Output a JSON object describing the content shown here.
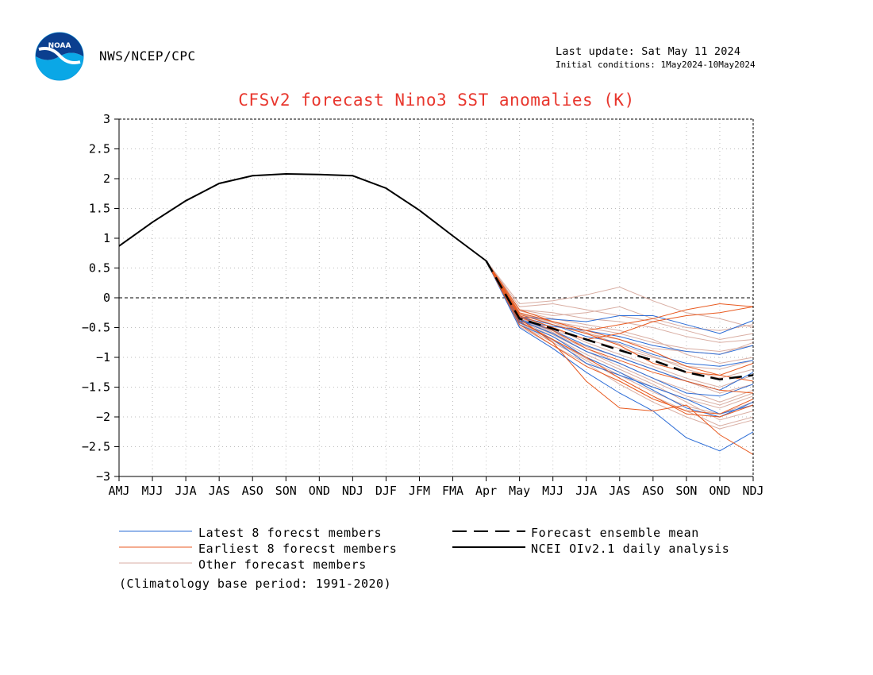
{
  "header": {
    "agency": "NWS/NCEP/CPC",
    "last_update": "Last update: Sat May 11 2024",
    "initial_conditions": "Initial conditions: 1May2024-10May2024",
    "logo_text": "NOAA"
  },
  "colors": {
    "title": "#e8362d",
    "latest": "#2b6cd6",
    "earliest": "#e85a20",
    "other": "#d9aea3",
    "observed": "#000000",
    "mean": "#000000"
  },
  "legend": {
    "latest": "Latest 8 forecst members",
    "earliest": "Earliest 8 forecst members",
    "other": "Other forecast members",
    "mean": "Forecast ensemble mean",
    "observed": "NCEI OIv2.1 daily analysis"
  },
  "footnote": "(Climatology base period: 1991-2020)",
  "chart_data": {
    "type": "line",
    "title": "CFSv2 forecast Nino3 SST anomalies (K)",
    "x": [
      "AMJ",
      "MJJ",
      "JJA",
      "JAS",
      "ASO",
      "SON",
      "OND",
      "NDJ",
      "DJF",
      "JFM",
      "FMA",
      "Apr",
      "May",
      "MJJ",
      "JJA",
      "JAS",
      "ASO",
      "SON",
      "OND",
      "NDJ"
    ],
    "ylim": [
      -3,
      3
    ],
    "yticks": [
      "3",
      "2.5",
      "2",
      "1.5",
      "1",
      "0.5",
      "0",
      "-0.5",
      "-1",
      "-1.5",
      "-2",
      "-2.5",
      "-3"
    ],
    "grid": true,
    "zero_line": true,
    "observed": {
      "name": "NCEI OIv2.1 daily analysis",
      "values": [
        0.87,
        1.27,
        1.63,
        1.92,
        2.05,
        2.08,
        2.07,
        2.05,
        1.84,
        1.47,
        1.04,
        0.62
      ]
    },
    "ensemble_mean": {
      "name": "Forecast ensemble mean",
      "start_index": 11,
      "values": [
        0.62,
        -0.35,
        -0.52,
        -0.7,
        -0.88,
        -1.05,
        -1.25,
        -1.37,
        -1.3
      ]
    },
    "latest_members": {
      "name": "Latest 8 forecst members",
      "start_index": 11,
      "members": [
        [
          0.62,
          -0.4,
          -0.48,
          -0.55,
          -0.65,
          -0.8,
          -0.9,
          -0.95,
          -0.8
        ],
        [
          0.62,
          -0.32,
          -0.36,
          -0.4,
          -0.3,
          -0.3,
          -0.45,
          -0.6,
          -0.38
        ],
        [
          0.62,
          -0.45,
          -0.7,
          -1.1,
          -1.3,
          -1.5,
          -1.7,
          -1.95,
          -1.8
        ],
        [
          0.62,
          -0.38,
          -0.6,
          -0.9,
          -1.1,
          -1.35,
          -1.6,
          -1.65,
          -1.45
        ],
        [
          0.62,
          -0.5,
          -0.85,
          -1.25,
          -1.6,
          -1.9,
          -2.35,
          -2.57,
          -2.25
        ],
        [
          0.62,
          -0.36,
          -0.55,
          -0.8,
          -1.0,
          -1.2,
          -1.4,
          -1.55,
          -1.25
        ],
        [
          0.62,
          -0.42,
          -0.65,
          -1.0,
          -1.25,
          -1.55,
          -1.85,
          -2.0,
          -1.75
        ],
        [
          0.62,
          -0.33,
          -0.45,
          -0.65,
          -0.75,
          -0.95,
          -1.1,
          -1.15,
          -1.05
        ]
      ]
    },
    "earliest_members": {
      "name": "Earliest 8 forecst members",
      "start_index": 11,
      "members": [
        [
          0.62,
          -0.2,
          -0.4,
          -0.55,
          -0.45,
          -0.35,
          -0.2,
          -0.1,
          -0.15
        ],
        [
          0.62,
          -0.3,
          -0.5,
          -0.7,
          -0.6,
          -0.4,
          -0.3,
          -0.25,
          -0.15
        ],
        [
          0.62,
          -0.35,
          -0.75,
          -1.4,
          -1.85,
          -1.9,
          -1.8,
          -2.3,
          -2.63
        ],
        [
          0.62,
          -0.28,
          -0.45,
          -0.6,
          -0.8,
          -1.1,
          -1.25,
          -1.3,
          -1.4
        ],
        [
          0.62,
          -0.4,
          -0.7,
          -1.0,
          -1.35,
          -1.65,
          -1.95,
          -2.0,
          -1.8
        ],
        [
          0.62,
          -0.32,
          -0.55,
          -0.85,
          -1.05,
          -1.25,
          -1.4,
          -1.55,
          -1.6
        ],
        [
          0.62,
          -0.25,
          -0.4,
          -0.55,
          -0.7,
          -0.9,
          -1.15,
          -1.3,
          -1.1
        ],
        [
          0.62,
          -0.45,
          -0.8,
          -1.15,
          -1.4,
          -1.7,
          -1.9,
          -1.95,
          -1.7
        ]
      ]
    },
    "other_members": {
      "name": "Other forecast members",
      "start_index": 11,
      "members": [
        [
          0.62,
          -0.1,
          -0.05,
          0.05,
          0.18,
          -0.05,
          -0.25,
          -0.35,
          -0.5
        ],
        [
          0.62,
          -0.15,
          -0.1,
          -0.2,
          -0.3,
          -0.4,
          -0.55,
          -0.7,
          -0.6
        ],
        [
          0.62,
          -0.2,
          -0.3,
          -0.25,
          -0.15,
          -0.35,
          -0.5,
          -0.55,
          -0.45
        ],
        [
          0.62,
          -0.25,
          -0.45,
          -0.6,
          -0.7,
          -0.85,
          -0.9,
          -0.95,
          -0.75
        ],
        [
          0.62,
          -0.3,
          -0.5,
          -0.75,
          -0.95,
          -1.15,
          -1.35,
          -1.5,
          -1.3
        ],
        [
          0.62,
          -0.35,
          -0.6,
          -0.85,
          -1.1,
          -1.35,
          -1.55,
          -1.75,
          -1.55
        ],
        [
          0.62,
          -0.4,
          -0.7,
          -1.0,
          -1.25,
          -1.5,
          -1.7,
          -1.85,
          -1.65
        ],
        [
          0.62,
          -0.3,
          -0.55,
          -0.7,
          -0.85,
          -1.0,
          -1.15,
          -1.2,
          -1.05
        ],
        [
          0.62,
          -0.38,
          -0.65,
          -0.95,
          -1.2,
          -1.45,
          -1.75,
          -2.05,
          -1.9
        ],
        [
          0.62,
          -0.28,
          -0.4,
          -0.5,
          -0.6,
          -0.75,
          -0.85,
          -0.9,
          -0.8
        ],
        [
          0.62,
          -0.45,
          -0.75,
          -1.05,
          -1.35,
          -1.65,
          -1.9,
          -2.15,
          -2.0
        ],
        [
          0.62,
          -0.22,
          -0.35,
          -0.45,
          -0.55,
          -0.7,
          -0.95,
          -1.1,
          -1.0
        ],
        [
          0.62,
          -0.33,
          -0.58,
          -0.82,
          -1.0,
          -1.2,
          -1.4,
          -1.6,
          -1.45
        ],
        [
          0.62,
          -0.36,
          -0.62,
          -0.9,
          -1.15,
          -1.4,
          -1.65,
          -1.8,
          -1.6
        ],
        [
          0.62,
          -0.26,
          -0.42,
          -0.58,
          -0.78,
          -0.98,
          -1.2,
          -1.35,
          -1.2
        ],
        [
          0.62,
          -0.42,
          -0.72,
          -1.02,
          -1.3,
          -1.58,
          -1.82,
          -1.95,
          -1.75
        ],
        [
          0.62,
          -0.2,
          -0.25,
          -0.35,
          -0.4,
          -0.5,
          -0.65,
          -0.75,
          -0.7
        ],
        [
          0.62,
          -0.48,
          -0.8,
          -1.1,
          -1.45,
          -1.75,
          -2.0,
          -2.2,
          -2.05
        ]
      ]
    }
  }
}
